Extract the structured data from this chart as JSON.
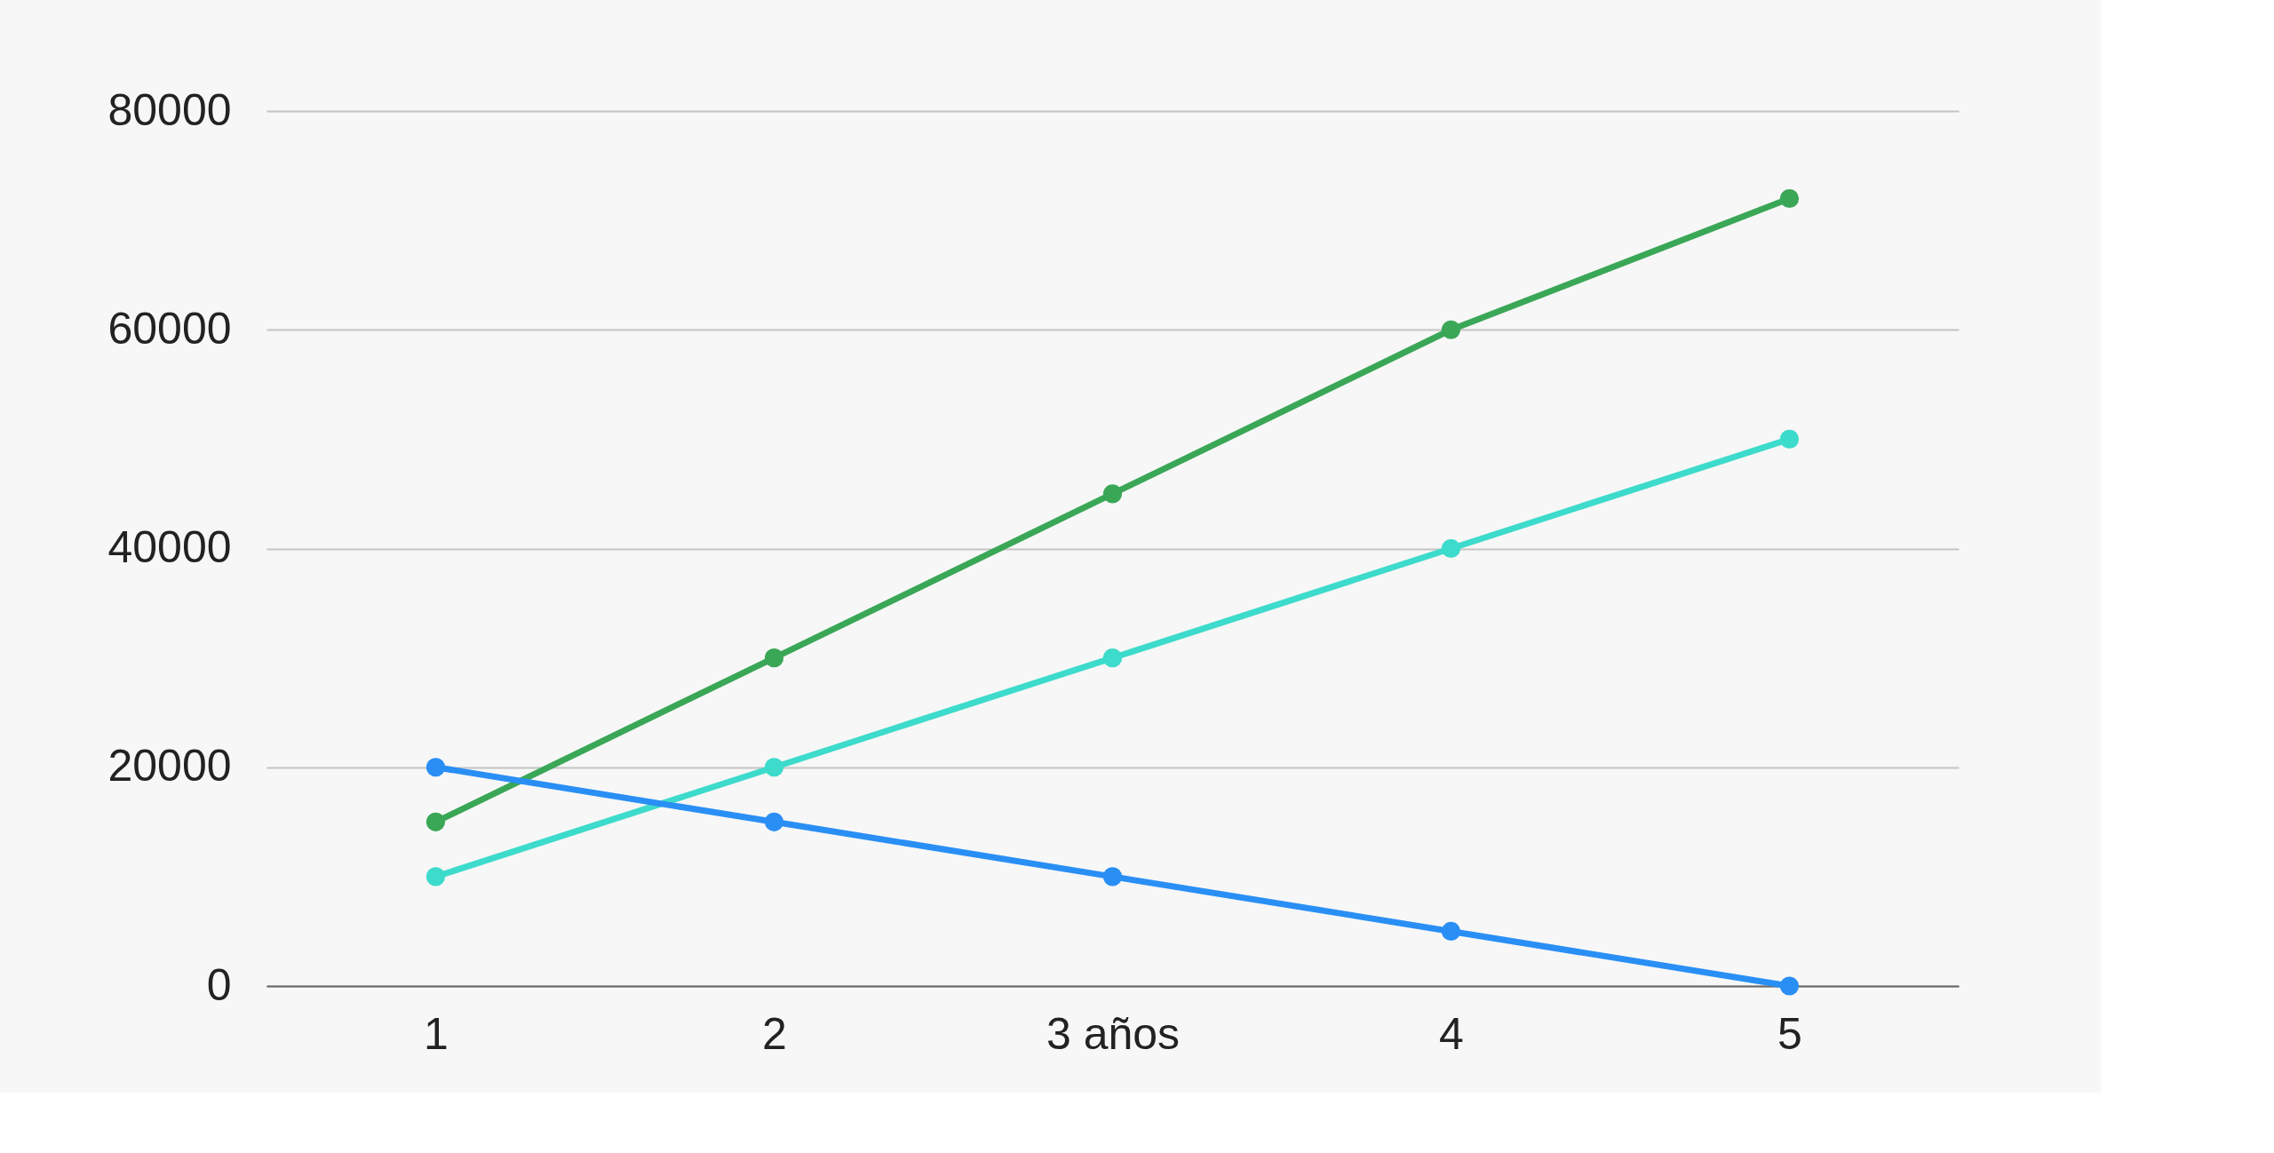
{
  "chart_data": {
    "type": "line",
    "categories": [
      "1",
      "2",
      "3 años",
      "4",
      "5"
    ],
    "series": [
      {
        "color": "#3aa757",
        "values": [
          15000,
          30000,
          45000,
          60000,
          72000
        ]
      },
      {
        "color": "#3ddbcb",
        "values": [
          10000,
          20000,
          30000,
          40000,
          50000
        ]
      },
      {
        "color": "#2a8ff5",
        "values": [
          20000,
          15000,
          10000,
          5000,
          0
        ]
      }
    ],
    "ylim": [
      0,
      80000
    ],
    "yticks": [
      0,
      20000,
      40000,
      60000,
      80000
    ],
    "grid": "y",
    "marker": "circle",
    "line_style": "solid"
  }
}
